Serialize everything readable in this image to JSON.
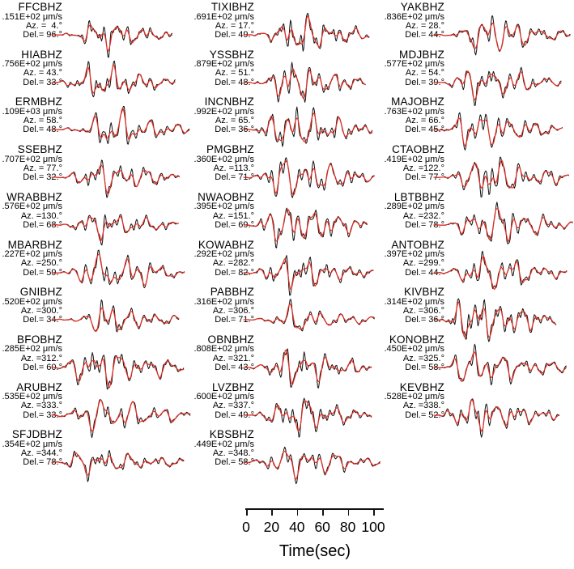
{
  "figure": {
    "description": "Observed (black) and synthetic (red) vertical-component seismogram waveform fits by station",
    "background": "#ffffff"
  },
  "chart_data": {
    "type": "line",
    "title": "",
    "xlabel": "Time(sec)",
    "xticks": [
      0,
      20,
      40,
      60,
      80,
      100
    ],
    "xlim": [
      0,
      108
    ],
    "grid": false,
    "legend": "none",
    "colors": {
      "observed": "#111111",
      "synthetic": "#e62d23"
    },
    "series": [
      {
        "name": "observed",
        "style": "black trace"
      },
      {
        "name": "synthetic",
        "style": "red trace overlain"
      }
    ],
    "stations": [
      {
        "name": "FFCBHZ",
        "amp": ".151E+02 μm/s",
        "az": "Az. =  4.°",
        "del": "Del.= 96.°",
        "azimuth_deg": 4,
        "delta_deg": 96,
        "col": 0,
        "row": 0
      },
      {
        "name": "HIABHZ",
        "amp": ".756E+02 μm/s",
        "az": "Az. = 43.°",
        "del": "Del.= 33.°",
        "azimuth_deg": 43,
        "delta_deg": 33,
        "col": 0,
        "row": 1
      },
      {
        "name": "ERMBHZ",
        "amp": ".109E+03 μm/s",
        "az": "Az. = 58.°",
        "del": "Del.= 48.°",
        "azimuth_deg": 58,
        "delta_deg": 48,
        "col": 0,
        "row": 2
      },
      {
        "name": "SSEBHZ",
        "amp": ".707E+02 μm/s",
        "az": "Az. = 77.°",
        "del": "Del.= 32.°",
        "azimuth_deg": 77,
        "delta_deg": 32,
        "col": 0,
        "row": 3
      },
      {
        "name": "WRABBHZ",
        "amp": ".576E+02 μm/s",
        "az": "Az. =130.°",
        "del": "Del.= 68.°",
        "azimuth_deg": 130,
        "delta_deg": 68,
        "col": 0,
        "row": 4
      },
      {
        "name": "MBARBHZ",
        "amp": ".227E+02 μm/s",
        "az": "Az. =250.°",
        "del": "Del.= 59.°",
        "azimuth_deg": 250,
        "delta_deg": 59,
        "col": 0,
        "row": 5
      },
      {
        "name": "GNIBHZ",
        "amp": ".520E+02 μm/s",
        "az": "Az. =300.°",
        "del": "Del.= 34.°",
        "azimuth_deg": 300,
        "delta_deg": 34,
        "col": 0,
        "row": 6
      },
      {
        "name": "BFOBHZ",
        "amp": ".285E+02 μm/s",
        "az": "Az. =312.°",
        "del": "Del.= 60.°",
        "azimuth_deg": 312,
        "delta_deg": 60,
        "col": 0,
        "row": 7
      },
      {
        "name": "ARUBHZ",
        "amp": ".535E+02 μm/s",
        "az": "Az. =333.°",
        "del": "Del.= 33.°",
        "azimuth_deg": 333,
        "delta_deg": 33,
        "col": 0,
        "row": 8
      },
      {
        "name": "SFJDBHZ",
        "amp": ".354E+02 μm/s",
        "az": "Az. =344.°",
        "del": "Del.= 78.°",
        "azimuth_deg": 344,
        "delta_deg": 78,
        "col": 0,
        "row": 9
      },
      {
        "name": "TIXIBHZ",
        "amp": ".691E+02 μm/s",
        "az": "Az. = 17.°",
        "del": "Del.= 49.°",
        "azimuth_deg": 17,
        "delta_deg": 49,
        "col": 1,
        "row": 0
      },
      {
        "name": "YSSBHZ",
        "amp": ".879E+02 μm/s",
        "az": "Az. = 51.°",
        "del": "Del.= 48.°",
        "azimuth_deg": 51,
        "delta_deg": 48,
        "col": 1,
        "row": 1
      },
      {
        "name": "INCNBHZ",
        "amp": ".992E+02 μm/s",
        "az": "Az. = 65.°",
        "del": "Del.= 36.°",
        "azimuth_deg": 65,
        "delta_deg": 36,
        "col": 1,
        "row": 2
      },
      {
        "name": "PMGBHZ",
        "amp": ".360E+02 μm/s",
        "az": "Az. =113.°",
        "del": "Del.= 71.°",
        "azimuth_deg": 113,
        "delta_deg": 71,
        "col": 1,
        "row": 3
      },
      {
        "name": "NWAOBHZ",
        "amp": ".395E+02 μm/s",
        "az": "Az. =151.°",
        "del": "Del.= 69.°",
        "azimuth_deg": 151,
        "delta_deg": 69,
        "col": 1,
        "row": 4
      },
      {
        "name": "KOWABHZ",
        "amp": ".292E+02 μm/s",
        "az": "Az. =282.°",
        "del": "Del.= 82.°",
        "azimuth_deg": 282,
        "delta_deg": 82,
        "col": 1,
        "row": 5
      },
      {
        "name": "PABBHZ",
        "amp": ".316E+02 μm/s",
        "az": "Az. =306.°",
        "del": "Del.= 71.°",
        "azimuth_deg": 306,
        "delta_deg": 71,
        "col": 1,
        "row": 6
      },
      {
        "name": "OBNBHZ",
        "amp": ".808E+02 μm/s",
        "az": "Az. =321.°",
        "del": "Del.= 43.°",
        "azimuth_deg": 321,
        "delta_deg": 43,
        "col": 1,
        "row": 7
      },
      {
        "name": "LVZBHZ",
        "amp": ".600E+02 μm/s",
        "az": "Az. =337.°",
        "del": "Del.= 49.°",
        "azimuth_deg": 337,
        "delta_deg": 49,
        "col": 1,
        "row": 8
      },
      {
        "name": "KBSBHZ",
        "amp": ".449E+02 μm/s",
        "az": "Az. =348.°",
        "del": "Del.= 58.°",
        "azimuth_deg": 348,
        "delta_deg": 58,
        "col": 1,
        "row": 9
      },
      {
        "name": "YAKBHZ",
        "amp": ".836E+02 μm/s",
        "az": "Az. = 28.°",
        "del": "Del.= 44.°",
        "azimuth_deg": 28,
        "delta_deg": 44,
        "col": 2,
        "row": 0
      },
      {
        "name": "MDJBHZ",
        "amp": ".577E+02 μm/s",
        "az": "Az. = 54.°",
        "del": "Del.= 39.°",
        "azimuth_deg": 54,
        "delta_deg": 39,
        "col": 2,
        "row": 1
      },
      {
        "name": "MAJOBHZ",
        "amp": ".763E+02 μm/s",
        "az": "Az. = 66.°",
        "del": "Del.= 45.°",
        "azimuth_deg": 66,
        "delta_deg": 45,
        "col": 2,
        "row": 2
      },
      {
        "name": "CTAOBHZ",
        "amp": ".419E+02 μm/s",
        "az": "Az. =122.°",
        "del": "Del.= 77.°",
        "azimuth_deg": 122,
        "delta_deg": 77,
        "col": 2,
        "row": 3
      },
      {
        "name": "LBTBBHZ",
        "amp": ".289E+02 μm/s",
        "az": "Az. =232.°",
        "del": "Del.= 78.°",
        "azimuth_deg": 232,
        "delta_deg": 78,
        "col": 2,
        "row": 4
      },
      {
        "name": "ANTOBHZ",
        "amp": ".397E+02 μm/s",
        "az": "Az. =299.°",
        "del": "Del.= 44.°",
        "azimuth_deg": 299,
        "delta_deg": 44,
        "col": 2,
        "row": 5
      },
      {
        "name": "KIVBHZ",
        "amp": ".314E+02 μm/s",
        "az": "Az. =306.°",
        "del": "Del.= 36.°",
        "azimuth_deg": 306,
        "delta_deg": 36,
        "col": 2,
        "row": 6
      },
      {
        "name": "KONOBHZ",
        "amp": ".450E+02 μm/s",
        "az": "Az. =325.°",
        "del": "Del.= 58.°",
        "azimuth_deg": 325,
        "delta_deg": 58,
        "col": 2,
        "row": 7
      },
      {
        "name": "KEVBHZ",
        "amp": ".528E+02 μm/s",
        "az": "Az. =338.°",
        "del": "Del.= 52.°",
        "azimuth_deg": 338,
        "delta_deg": 52,
        "col": 2,
        "row": 8
      }
    ]
  }
}
